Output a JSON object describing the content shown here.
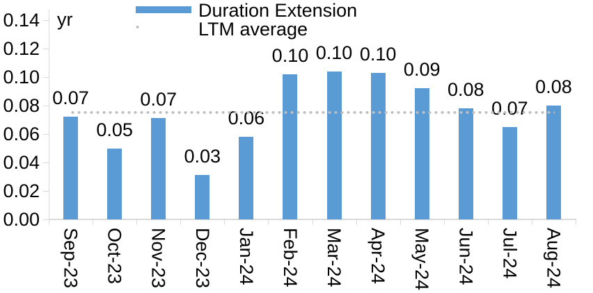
{
  "legend": {
    "position": "top"
  },
  "chart_data": {
    "type": "bar",
    "title": "",
    "categories": [
      "Sep-23",
      "Oct-23",
      "Nov-23",
      "Dec-23",
      "Jan-24",
      "Feb-24",
      "Mar-24",
      "Apr-24",
      "May-24",
      "Jun-24",
      "Jul-24",
      "Aug-24"
    ],
    "series": [
      {
        "name": "Duration Extension",
        "values": [
          0.072,
          0.05,
          0.071,
          0.031,
          0.058,
          0.102,
          0.104,
          0.103,
          0.092,
          0.078,
          0.065,
          0.08
        ]
      }
    ],
    "data_labels": [
      "0.07",
      "0.05",
      "0.07",
      "0.03",
      "0.06",
      "0.10",
      "0.10",
      "0.10",
      "0.09",
      "0.08",
      "0.07",
      "0.08"
    ],
    "average_line": {
      "name": "LTM average",
      "value": 0.075
    },
    "xlabel": "",
    "ylabel": "yr",
    "ylim": [
      0,
      0.14
    ],
    "y_major_unit": 0.02,
    "y_tick_labels": [
      "0.00",
      "0.02",
      "0.04",
      "0.06",
      "0.08",
      "0.10",
      "0.12",
      "0.14"
    ],
    "grid": false,
    "legend_position": "top",
    "colors": {
      "bar": "#5B9BD5",
      "average_line": "#BFBFBF",
      "axis": "#D9D9D9",
      "text": "#000000",
      "background": "#FFFFFF"
    }
  }
}
